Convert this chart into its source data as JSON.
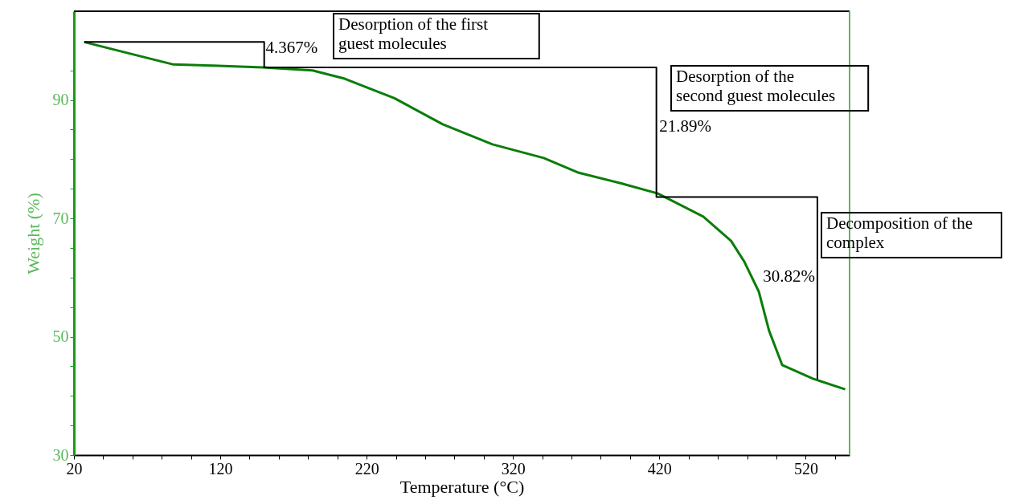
{
  "chart_data": {
    "type": "line",
    "xlabel": "Temperature (°C)",
    "ylabel": "Weight (%)",
    "xlim": [
      20,
      550
    ],
    "ylim": [
      30,
      105
    ],
    "xticks": [
      20,
      {
        "value": 40,
        "label": null
      },
      {
        "value": 60,
        "label": null
      },
      {
        "value": 80,
        "label": null
      },
      {
        "value": 100,
        "label": null
      },
      120,
      {
        "value": 140,
        "label": null
      },
      {
        "value": 160,
        "label": null
      },
      {
        "value": 180,
        "label": null
      },
      {
        "value": 200,
        "label": null
      },
      220,
      {
        "value": 240,
        "label": null
      },
      {
        "value": 260,
        "label": null
      },
      {
        "value": 280,
        "label": null
      },
      {
        "value": 300,
        "label": null
      },
      320,
      {
        "value": 340,
        "label": null
      },
      {
        "value": 360,
        "label": null
      },
      {
        "value": 380,
        "label": null
      },
      {
        "value": 400,
        "label": null
      },
      420,
      {
        "value": 440,
        "label": null
      },
      {
        "value": 460,
        "label": null
      },
      {
        "value": 480,
        "label": null
      },
      {
        "value": 500,
        "label": null
      },
      520,
      {
        "value": 540,
        "label": null
      }
    ],
    "yticks": [
      30,
      {
        "value": 35,
        "label": null
      },
      {
        "value": 40,
        "label": null
      },
      {
        "value": 45,
        "label": null
      },
      50,
      {
        "value": 55,
        "label": null
      },
      {
        "value": 60,
        "label": null
      },
      {
        "value": 65,
        "label": null
      },
      70,
      {
        "value": 75,
        "label": null
      },
      {
        "value": 80,
        "label": null
      },
      {
        "value": 85,
        "label": null
      },
      90,
      {
        "value": 95,
        "label": null
      }
    ],
    "grid": false,
    "marker": "none",
    "line_style": "solid",
    "series": [
      {
        "color": "#0a7d0a",
        "x": [
          27,
          59,
          88,
          115,
          149,
          183,
          205,
          239,
          272,
          306,
          341,
          365,
          394,
          419,
          450,
          469,
          478,
          488,
          495,
          504,
          525,
          547
        ],
        "values": [
          99.8,
          97.8,
          96.0,
          95.8,
          95.5,
          95.0,
          93.6,
          90.3,
          85.9,
          82.5,
          80.2,
          77.7,
          75.9,
          74.2,
          70.3,
          66.2,
          62.7,
          57.6,
          51.0,
          45.2,
          42.9,
          41.1
        ]
      },
      {
        "type": "line",
        "color": "#000000",
        "x": [
          27,
          150,
          150,
          418,
          418,
          528,
          528
        ],
        "values": [
          99.8,
          99.8,
          95.5,
          95.5,
          73.6,
          73.6,
          42.8
        ]
      }
    ],
    "annotations": [
      {
        "text": "4.367%",
        "x": 151,
        "y": 98.7
      },
      "Desorption of the first\nguest molecules",
      "Desorption of the\nsecond guest molecules",
      {
        "text": "21.89%",
        "x": 420,
        "y": 85.5
      },
      "Decomposition of the\ncomplex",
      "30.82%"
    ]
  }
}
